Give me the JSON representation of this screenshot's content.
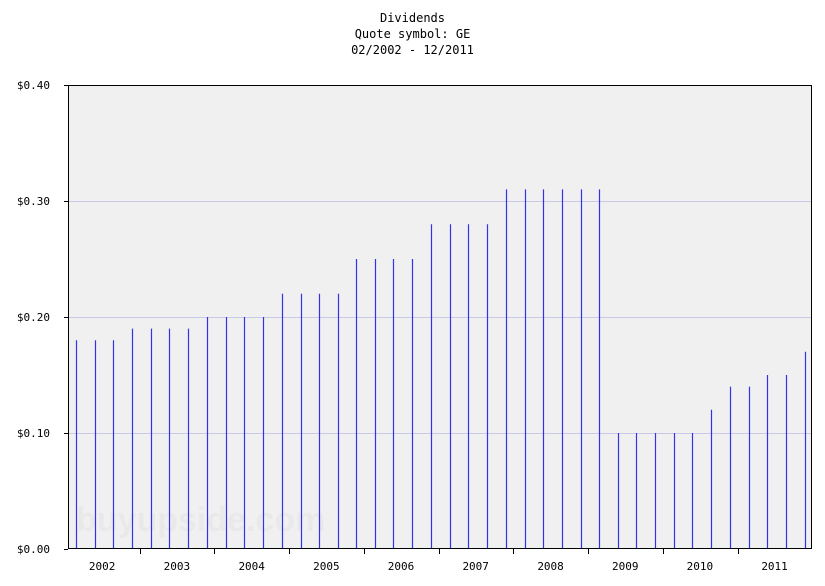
{
  "chart_data": {
    "type": "bar",
    "title": "Dividends",
    "subtitle_lines": [
      "Quote symbol: GE",
      "02/2002 - 12/2011"
    ],
    "xlabel": "",
    "ylabel": "",
    "ylim": [
      0,
      0.4
    ],
    "y_ticks": [
      0.0,
      0.1,
      0.2,
      0.3,
      0.4
    ],
    "y_tick_labels": [
      "$0.00",
      "$0.10",
      "$0.20",
      "$0.30",
      "$0.40"
    ],
    "year_labels": [
      "2002",
      "2003",
      "2004",
      "2005",
      "2006",
      "2007",
      "2008",
      "2009",
      "2010",
      "2011"
    ],
    "x_range": [
      "2002-01-15",
      "2011-12-31"
    ],
    "grid": true,
    "bar_color": "#3333ee",
    "grid_color": "#c8c8e8",
    "plot_background": "#f0f0f0",
    "watermark": "buyupside.com",
    "points": [
      {
        "date": "2002-02-25",
        "value": 0.18
      },
      {
        "date": "2002-05-25",
        "value": 0.18
      },
      {
        "date": "2002-08-25",
        "value": 0.18
      },
      {
        "date": "2002-11-25",
        "value": 0.19
      },
      {
        "date": "2003-02-25",
        "value": 0.19
      },
      {
        "date": "2003-05-25",
        "value": 0.19
      },
      {
        "date": "2003-08-25",
        "value": 0.19
      },
      {
        "date": "2003-11-25",
        "value": 0.2
      },
      {
        "date": "2004-02-25",
        "value": 0.2
      },
      {
        "date": "2004-05-25",
        "value": 0.2
      },
      {
        "date": "2004-08-25",
        "value": 0.2
      },
      {
        "date": "2004-11-25",
        "value": 0.22
      },
      {
        "date": "2005-02-25",
        "value": 0.22
      },
      {
        "date": "2005-05-25",
        "value": 0.22
      },
      {
        "date": "2005-08-25",
        "value": 0.22
      },
      {
        "date": "2005-11-25",
        "value": 0.25
      },
      {
        "date": "2006-02-25",
        "value": 0.25
      },
      {
        "date": "2006-05-25",
        "value": 0.25
      },
      {
        "date": "2006-08-25",
        "value": 0.25
      },
      {
        "date": "2006-11-25",
        "value": 0.28
      },
      {
        "date": "2007-02-25",
        "value": 0.28
      },
      {
        "date": "2007-05-25",
        "value": 0.28
      },
      {
        "date": "2007-08-25",
        "value": 0.28
      },
      {
        "date": "2007-11-25",
        "value": 0.31
      },
      {
        "date": "2008-02-25",
        "value": 0.31
      },
      {
        "date": "2008-05-25",
        "value": 0.31
      },
      {
        "date": "2008-08-25",
        "value": 0.31
      },
      {
        "date": "2008-11-25",
        "value": 0.31
      },
      {
        "date": "2009-02-25",
        "value": 0.31
      },
      {
        "date": "2009-05-25",
        "value": 0.1
      },
      {
        "date": "2009-08-25",
        "value": 0.1
      },
      {
        "date": "2009-11-25",
        "value": 0.1
      },
      {
        "date": "2010-02-25",
        "value": 0.1
      },
      {
        "date": "2010-05-25",
        "value": 0.1
      },
      {
        "date": "2010-08-25",
        "value": 0.12
      },
      {
        "date": "2010-11-25",
        "value": 0.14
      },
      {
        "date": "2011-02-25",
        "value": 0.14
      },
      {
        "date": "2011-05-25",
        "value": 0.15
      },
      {
        "date": "2011-08-25",
        "value": 0.15
      },
      {
        "date": "2011-11-25",
        "value": 0.17
      }
    ]
  }
}
